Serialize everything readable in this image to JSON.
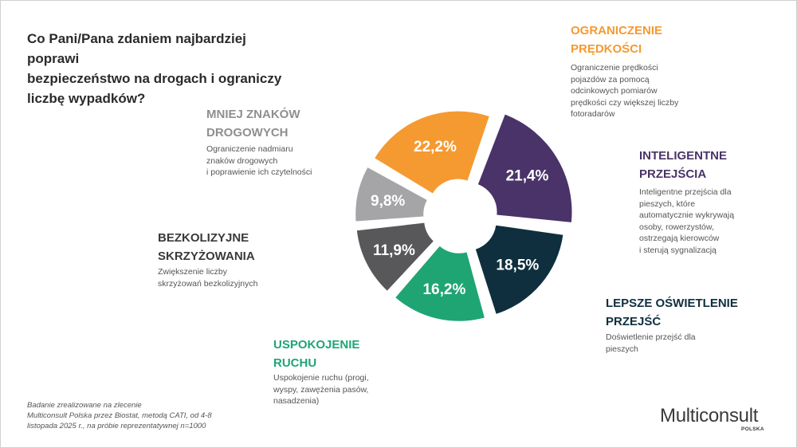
{
  "question": [
    "Co Pani/Pana zdaniem najbardziej poprawi",
    "bezpieczeństwo na drogach i ograniczy",
    "liczbę wypadków?"
  ],
  "chart_data": {
    "type": "pie",
    "variant": "exploded-donut",
    "slices": [
      {
        "label": [
          "OGRANICZENIE",
          "PRĘDKOŚCI"
        ],
        "value": 22.2,
        "value_label": "22,2%",
        "color": "#f59a31",
        "desc": [
          "Ograniczenie prędkości",
          "pojazdów za pomocą",
          "odcinkowych pomiarów",
          "prędkości czy większej liczby",
          "fotoradarów"
        ]
      },
      {
        "label": [
          "INTELIGENTNE",
          "PRZEJŚCIA"
        ],
        "value": 21.4,
        "value_label": "21,4%",
        "color": "#4a3368",
        "desc": [
          "Inteligentne przejścia dla",
          "pieszych, które",
          "automatycznie wykrywają",
          "osoby, rowerzystów,",
          "ostrzegają kierowców",
          "i sterują sygnalizacją"
        ]
      },
      {
        "label": [
          "LEPSZE OŚWIETLENIE",
          "PRZEJŚĆ"
        ],
        "value": 18.5,
        "value_label": "18,5%",
        "color": "#0f2f3e",
        "desc": [
          "Doświetlenie przejść dla",
          "pieszych"
        ]
      },
      {
        "label": [
          "USPOKOJENIE",
          "RUCHU"
        ],
        "value": 16.2,
        "value_label": "16,2%",
        "color": "#1fa574",
        "desc": [
          "Uspokojenie ruchu (progi,",
          "wyspy, zawężenia pasów,",
          "nasadzenia)"
        ]
      },
      {
        "label": [
          "BEZKOLIZYJNE",
          "SKRZYŻOWANIA"
        ],
        "value": 11.9,
        "value_label": "11,9%",
        "color": "#58585b",
        "desc": [
          "Zwiększenie liczby",
          "skrzyżowań bezkolizyjnych"
        ]
      },
      {
        "label": [
          "MNIEJ ZNAKÓW",
          "DROGOWYCH"
        ],
        "value": 9.8,
        "value_label": "9,8%",
        "color": "#a5a5a8",
        "desc": [
          "Ograniczenie nadmiaru",
          "znaków drogowych",
          "i poprawienie ich czytelności"
        ]
      }
    ]
  },
  "footnote": [
    "Badanie zrealizowane na zlecenie",
    "Multiconsult Polska przez Biostat, metodą CATI, od 4-8",
    "listopada 2025 r., na próbie reprezentatywnej n=1000"
  ],
  "logo": {
    "name": "Multiconsult",
    "sub": "POLSKA"
  }
}
